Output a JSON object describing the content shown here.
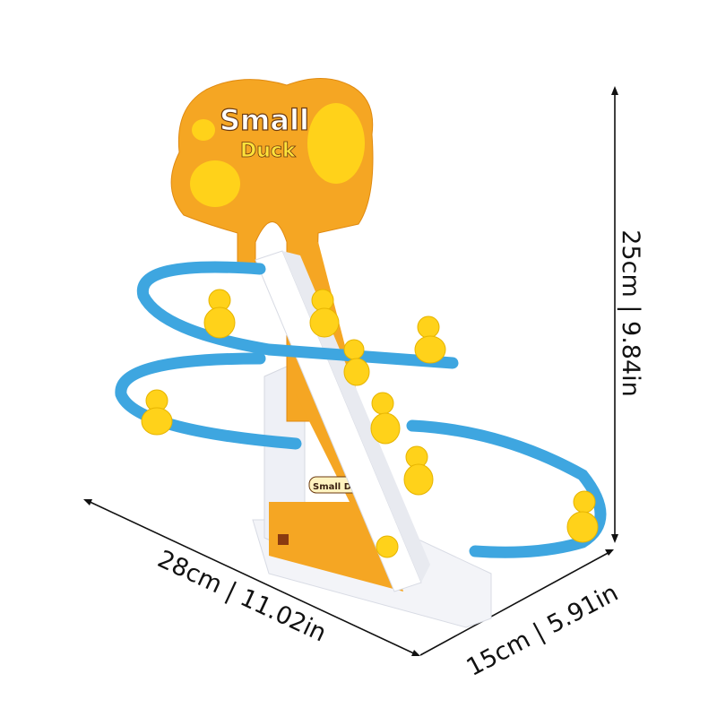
{
  "product": {
    "logo_text": [
      "Small",
      "Duck"
    ],
    "badge_text": "Small Duck",
    "colors": {
      "track": "#3ea6e0",
      "board": "#f5a623",
      "duck": "#ffd21a",
      "stairs": "#ffffff"
    }
  },
  "dimensions": {
    "height": "25cm | 9.84in",
    "length": "28cm | 11.02in",
    "width": "15cm | 5.91in"
  }
}
